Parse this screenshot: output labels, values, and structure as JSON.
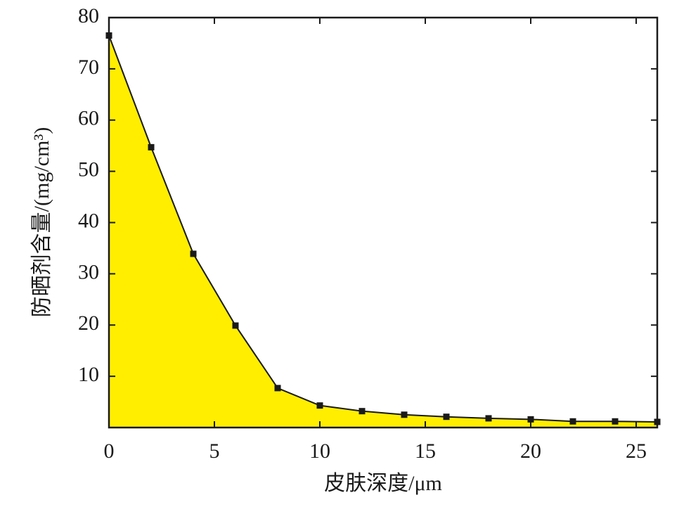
{
  "chart_data": {
    "type": "area",
    "x_label": "皮肤深度/μm",
    "y_label": "防晒剂含量/(mg/cm³)",
    "x": [
      0,
      2,
      4,
      6,
      8,
      10,
      12,
      14,
      16,
      18,
      20,
      22,
      24,
      26
    ],
    "values": [
      76.5,
      54.7,
      33.9,
      19.9,
      7.7,
      4.3,
      3.2,
      2.5,
      2.1,
      1.8,
      1.6,
      1.2,
      1.2,
      1.1
    ],
    "color": "#ffee00",
    "line_color": "#1a1a1a",
    "xlim": [
      0,
      26
    ],
    "xticks": [
      0,
      5,
      10,
      15,
      20,
      25
    ],
    "ylim": [
      0,
      80
    ],
    "yticks": [
      10,
      20,
      30,
      40,
      50,
      60,
      70,
      80
    ],
    "grid": false
  }
}
